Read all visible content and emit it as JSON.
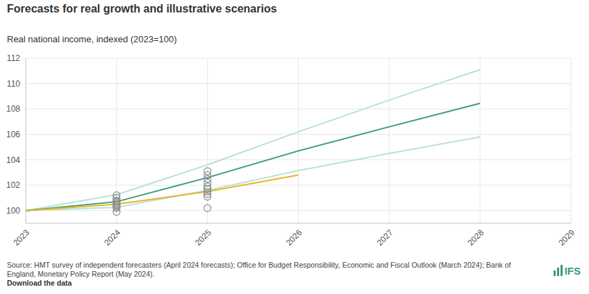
{
  "chart_data": {
    "type": "line",
    "title": "Forecasts for real growth and illustrative scenarios",
    "subtitle": "Real national income, indexed (2023=100)",
    "source": "Source: HMT survey of independent forecasters (April 2024 forecasts); Office for Budget Responsibility, Economic and Fiscal Outlook (March 2024); Bank of England, Monetary Policy Report (May 2024).",
    "link": "Download the data",
    "logo": "IFS",
    "x": [
      2023,
      2024,
      2025,
      2026,
      2027,
      2028
    ],
    "series": [
      {
        "color": "#b8e2d4",
        "values": [
          100,
          101.25,
          103.6,
          106.2,
          108.7,
          111.1
        ]
      },
      {
        "color": "#b8e2d4",
        "values": [
          100,
          100.25,
          101.6,
          103.15,
          104.5,
          105.8
        ]
      },
      {
        "color": "#3a9a78",
        "values": [
          100,
          100.7,
          102.6,
          104.7,
          106.6,
          108.45
        ]
      },
      {
        "color": "#e8b321",
        "values": [
          100,
          100.5,
          101.5,
          102.8,
          null,
          null
        ]
      },
      {
        "type": "scatter",
        "marker": "circle",
        "color": "#8c8c8c",
        "x": [
          2024,
          2024,
          2024,
          2024,
          2024,
          2024,
          2024,
          2024,
          2024,
          2024,
          2025,
          2025,
          2025,
          2025,
          2025,
          2025,
          2025,
          2025,
          2025,
          2025
        ],
        "values": [
          99.9,
          100.2,
          100.3,
          100.4,
          100.5,
          100.6,
          100.7,
          100.8,
          101.0,
          101.2,
          100.2,
          101.1,
          101.3,
          101.5,
          101.7,
          101.9,
          102.2,
          102.5,
          102.8,
          103.1
        ]
      }
    ],
    "xlim": [
      2023,
      2029
    ],
    "xticks": [
      2023,
      2024,
      2025,
      2026,
      2027,
      2028,
      2029
    ],
    "ylim": [
      99,
      112
    ],
    "yticks": [
      100,
      102,
      104,
      106,
      108,
      110,
      112
    ],
    "grid": true
  }
}
